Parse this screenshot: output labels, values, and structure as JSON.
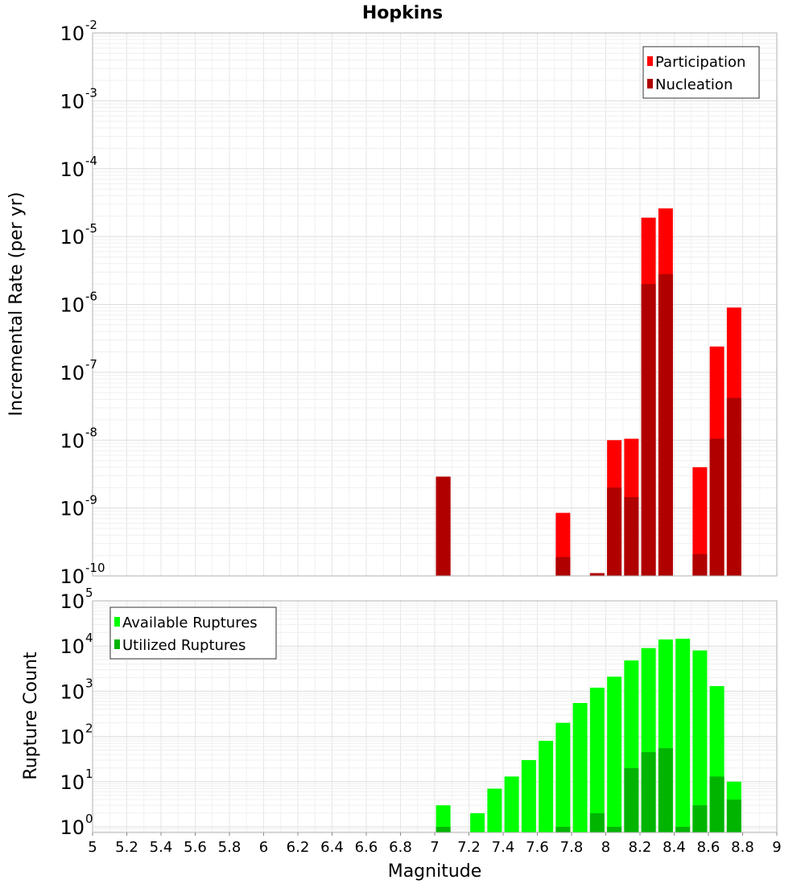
{
  "chart_data": [
    {
      "type": "bar",
      "title": "Hopkins",
      "ylabel": "Incremental Rate (per yr)",
      "y_scale": "log",
      "ylim": [
        1e-10,
        0.01
      ],
      "y_ticks": [
        {
          "base": "10",
          "exp": "-10"
        },
        {
          "base": "10",
          "exp": "-9"
        },
        {
          "base": "10",
          "exp": "-8"
        },
        {
          "base": "10",
          "exp": "-7"
        },
        {
          "base": "10",
          "exp": "-6"
        },
        {
          "base": "10",
          "exp": "-5"
        },
        {
          "base": "10",
          "exp": "-4"
        },
        {
          "base": "10",
          "exp": "-3"
        },
        {
          "base": "10",
          "exp": "-2"
        }
      ],
      "grid": true,
      "legend_position": "top-right",
      "series": [
        {
          "name": "Participation",
          "color": "#ff0000",
          "points": [
            [
              7.05,
              2.9e-09
            ],
            [
              7.75,
              8.5e-10
            ],
            [
              7.95,
              1.1e-10
            ],
            [
              8.05,
              1e-08
            ],
            [
              8.15,
              1.05e-08
            ],
            [
              8.25,
              1.9e-05
            ],
            [
              8.35,
              2.6e-05
            ],
            [
              8.55,
              4e-09
            ],
            [
              8.65,
              2.4e-07
            ],
            [
              8.75,
              9e-07
            ]
          ]
        },
        {
          "name": "Nucleation",
          "color": "#b00000",
          "points": [
            [
              7.05,
              2.9e-09
            ],
            [
              7.75,
              1.9e-10
            ],
            [
              7.95,
              1.1e-10
            ],
            [
              8.05,
              2e-09
            ],
            [
              8.15,
              1.45e-09
            ],
            [
              8.25,
              2e-06
            ],
            [
              8.35,
              2.8e-06
            ],
            [
              8.55,
              2.1e-10
            ],
            [
              8.65,
              1.05e-08
            ],
            [
              8.75,
              4.2e-08
            ]
          ]
        }
      ]
    },
    {
      "type": "bar",
      "xlabel": "Magnitude",
      "ylabel": "Rupture Count",
      "y_scale": "log",
      "ylim": [
        0.75,
        100000.0
      ],
      "xlim": [
        5,
        9
      ],
      "x_ticks": [
        "5",
        "5.2",
        "5.4",
        "5.6",
        "5.8",
        "6",
        "6.2",
        "6.4",
        "6.6",
        "6.8",
        "7",
        "7.2",
        "7.4",
        "7.6",
        "7.8",
        "8",
        "8.2",
        "8.4",
        "8.6",
        "8.8",
        "9"
      ],
      "y_ticks": [
        {
          "base": "10",
          "exp": "0"
        },
        {
          "base": "10",
          "exp": "1"
        },
        {
          "base": "10",
          "exp": "2"
        },
        {
          "base": "10",
          "exp": "3"
        },
        {
          "base": "10",
          "exp": "4"
        },
        {
          "base": "10",
          "exp": "5"
        }
      ],
      "grid": true,
      "legend_position": "top-left",
      "series": [
        {
          "name": "Available Ruptures",
          "color": "#00ff00",
          "points": [
            [
              7.05,
              3
            ],
            [
              7.25,
              2
            ],
            [
              7.35,
              7
            ],
            [
              7.45,
              13
            ],
            [
              7.55,
              30
            ],
            [
              7.65,
              80
            ],
            [
              7.75,
              200
            ],
            [
              7.85,
              550
            ],
            [
              7.95,
              1200
            ],
            [
              8.05,
              2100
            ],
            [
              8.15,
              4800
            ],
            [
              8.25,
              9000
            ],
            [
              8.35,
              14000
            ],
            [
              8.45,
              14500
            ],
            [
              8.55,
              8000
            ],
            [
              8.65,
              1300
            ],
            [
              8.75,
              10
            ]
          ]
        },
        {
          "name": "Utilized Ruptures",
          "color": "#00b400",
          "points": [
            [
              7.05,
              1
            ],
            [
              7.75,
              1
            ],
            [
              7.95,
              2
            ],
            [
              8.05,
              1
            ],
            [
              8.15,
              20
            ],
            [
              8.25,
              45
            ],
            [
              8.35,
              55
            ],
            [
              8.45,
              1
            ],
            [
              8.55,
              3
            ],
            [
              8.65,
              13
            ],
            [
              8.75,
              4
            ]
          ]
        }
      ]
    }
  ]
}
